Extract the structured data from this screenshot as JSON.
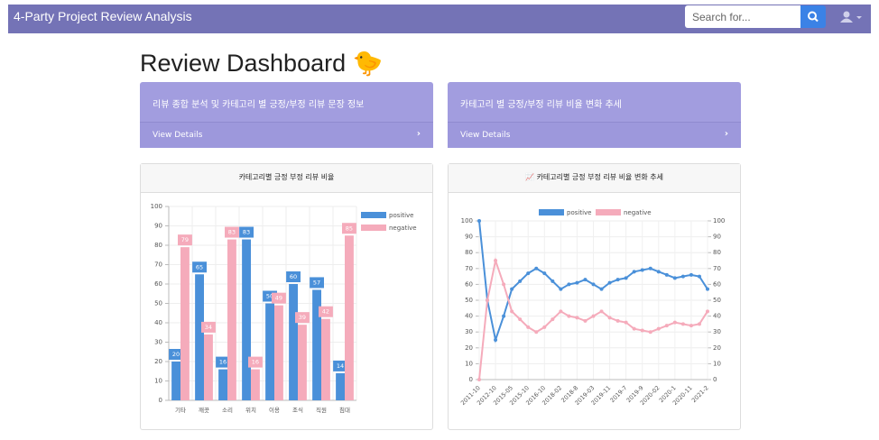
{
  "navbar": {
    "brand": "4-Party Project Review Analysis",
    "search_placeholder": "Search for..."
  },
  "heading": "Review Dashboard 🐤",
  "cards": [
    {
      "title": "리뷰 종합 분석 및 카테고리 별 긍정/부정 리뷰 문장 정보",
      "link": "View Details"
    },
    {
      "title": "카테고리 별 긍정/부정 리뷰 비율 변화 추세",
      "link": "View Details"
    }
  ],
  "chart_data": [
    {
      "type": "bar",
      "title": "카테고리별 긍정 부정 리뷰 비율",
      "categories": [
        "기타",
        "깨끗",
        "소리",
        "위치",
        "이용",
        "조식",
        "직원",
        "침대"
      ],
      "series": [
        {
          "name": "positive",
          "color": "#4a90d9",
          "values": [
            20,
            65,
            16,
            83,
            50,
            60,
            57,
            14
          ]
        },
        {
          "name": "negative",
          "color": "#f5abbb",
          "values": [
            79,
            34,
            83,
            16,
            49,
            39,
            42,
            85
          ]
        }
      ],
      "ylim": [
        0,
        100
      ],
      "yticks": [
        0,
        10,
        20,
        30,
        40,
        50,
        60,
        70,
        80,
        90,
        100
      ],
      "grid": true,
      "legend": "right"
    },
    {
      "type": "line",
      "title": "카테고리별 긍정 부정 리뷰 비율 변화 추세",
      "categories": [
        "2011-10",
        null,
        "2012-10",
        null,
        "2015-05",
        null,
        "2015-10",
        null,
        "2016-10",
        null,
        "2018-02",
        null,
        "2018-8",
        null,
        "2019-03",
        null,
        "2019-11",
        null,
        "2019-7",
        null,
        "2019-9",
        null,
        "2020-02",
        null,
        "2020-1",
        null,
        "2020-11",
        null,
        "2021-2"
      ],
      "series": [
        {
          "name": "positive",
          "color": "#4a90d9",
          "values": [
            100,
            50,
            25,
            40,
            57,
            62,
            67,
            70,
            67,
            62,
            57,
            60,
            61,
            63,
            60,
            57,
            61,
            63,
            64,
            68,
            69,
            70,
            68,
            66,
            64,
            65,
            66,
            65,
            57
          ]
        },
        {
          "name": "negative",
          "color": "#f5abbb",
          "axis": "y2",
          "values": [
            0,
            50,
            75,
            60,
            43,
            38,
            33,
            30,
            33,
            38,
            43,
            40,
            39,
            37,
            40,
            43,
            39,
            37,
            36,
            32,
            31,
            30,
            32,
            34,
            36,
            35,
            34,
            35,
            43
          ]
        }
      ],
      "ylim": [
        0,
        100
      ],
      "yticks": [
        0,
        10,
        20,
        30,
        40,
        50,
        60,
        70,
        80,
        90,
        100
      ],
      "y2lim": [
        0,
        100
      ],
      "y2ticks": [
        0,
        10,
        20,
        30,
        40,
        50,
        60,
        70,
        80,
        90,
        100
      ],
      "grid": true,
      "legend": "top"
    }
  ]
}
